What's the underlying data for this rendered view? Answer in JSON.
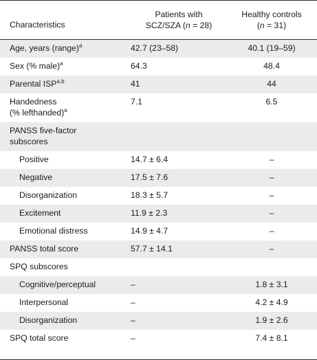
{
  "header": {
    "col1": "Characteristics",
    "col2_line1": "Patients with",
    "col2_line2_pre": "SCZ/SZA (",
    "col2_n": "n",
    "col2_line2_post": " = 28)",
    "col3_line1": "Healthy controls",
    "col3_line2_pre": "(",
    "col3_n": "n",
    "col3_line2_post": " = 31)"
  },
  "rows": [
    {
      "label": "Age, years (range)",
      "sup": "a",
      "patients": "42.7 (23–58)",
      "controls": "40.1 (19–59)"
    },
    {
      "label": "Sex (% male)",
      "sup": "a",
      "patients": "64.3",
      "controls": "48.4"
    },
    {
      "label": "Parental ISP",
      "sup": "a,b",
      "patients": "41",
      "controls": "44"
    },
    {
      "label_line1": "Handedness",
      "label_line2": "(% lefthanded)",
      "sup": "a",
      "patients": "7.1",
      "controls": "6.5"
    },
    {
      "label_line1": "PANSS five-factor",
      "label_line2": "subscores",
      "patients": "",
      "controls": ""
    },
    {
      "label": "Positive",
      "patients": "14.7 ± 6.4",
      "controls": "–"
    },
    {
      "label": "Negative",
      "patients": "17.5 ± 7.6",
      "controls": "–"
    },
    {
      "label": "Disorganization",
      "patients": "18.3 ± 5.7",
      "controls": "–"
    },
    {
      "label": "Excitement",
      "patients": "11.9 ± 2.3",
      "controls": "–"
    },
    {
      "label": "Emotional distress",
      "patients": "14.9 ± 4.7",
      "controls": "–"
    },
    {
      "label": "PANSS total score",
      "patients": "57.7 ± 14.1",
      "controls": "–"
    },
    {
      "label": "SPQ subscores",
      "patients": "",
      "controls": ""
    },
    {
      "label": "Cognitive/perceptual",
      "patients": "–",
      "controls": "1.8 ± 3.1"
    },
    {
      "label": "Interpersonal",
      "patients": "–",
      "controls": "4.2 ± 4.9"
    },
    {
      "label": "Disorganization",
      "patients": "–",
      "controls": "1.9 ± 2.6"
    },
    {
      "label": "SPQ total score",
      "patients": "–",
      "controls": "7.4 ± 8.1"
    }
  ]
}
